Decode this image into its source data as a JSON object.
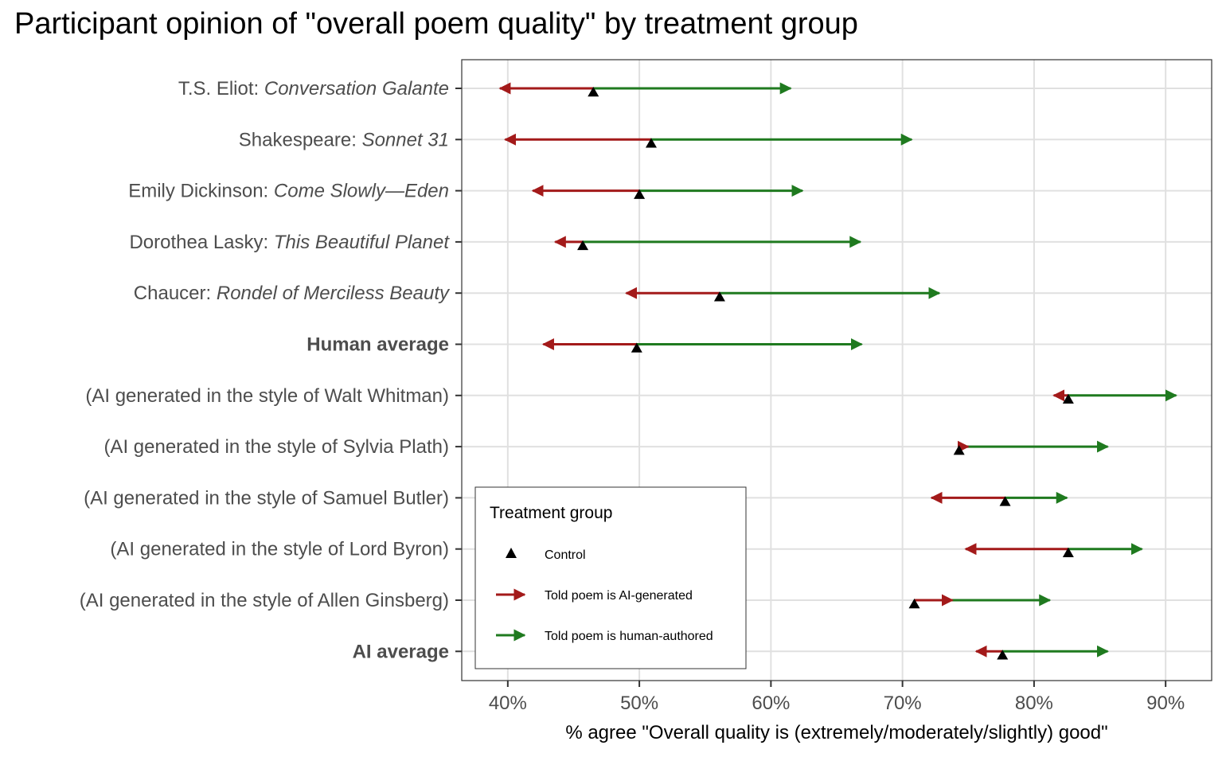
{
  "chart_data": {
    "type": "dumbbell-arrow",
    "title": "Participant opinion of \"overall poem quality\" by treatment group",
    "xlabel": "% agree \"Overall quality is (extremely/moderately/slightly) good\"",
    "xlim": [
      36.5,
      93.5
    ],
    "x_ticks": [
      40,
      50,
      60,
      70,
      80,
      90
    ],
    "x_tick_labels": [
      "40%",
      "50%",
      "60%",
      "70%",
      "80%",
      "90%"
    ],
    "grid": true,
    "legend_placement": "bottom-left",
    "legend": {
      "title": "Treatment group",
      "entries": [
        "Control",
        "Told poem is AI-generated",
        "Told poem is human-authored"
      ]
    },
    "colors": {
      "control": "#000000",
      "ai_generated": "#a31a1a",
      "human_authored": "#1f7a1f",
      "grid": "#e0e0e0",
      "panel_border": "#333333"
    },
    "categories": [
      {
        "prefix": "T.S. Eliot: ",
        "italic": "Conversation Galante",
        "bold": false,
        "control": 46.5,
        "ai_generated": 39.4,
        "human_authored": 61.5
      },
      {
        "prefix": "Shakespeare: ",
        "italic": "Sonnet 31",
        "bold": false,
        "control": 50.9,
        "ai_generated": 39.8,
        "human_authored": 70.7
      },
      {
        "prefix": "Emily Dickinson: ",
        "italic": "Come Slowly—Eden",
        "bold": false,
        "control": 50.0,
        "ai_generated": 41.9,
        "human_authored": 62.4
      },
      {
        "prefix": "Dorothea Lasky: ",
        "italic": "This Beautiful Planet",
        "bold": false,
        "control": 45.7,
        "ai_generated": 43.6,
        "human_authored": 66.8
      },
      {
        "prefix": "Chaucer: ",
        "italic": "Rondel of Merciless Beauty",
        "bold": false,
        "control": 56.1,
        "ai_generated": 49.0,
        "human_authored": 72.8
      },
      {
        "prefix": "Human average",
        "italic": "",
        "bold": true,
        "control": 49.8,
        "ai_generated": 42.7,
        "human_authored": 66.9
      },
      {
        "prefix": "(AI generated in the style of Walt Whitman)",
        "italic": "",
        "bold": false,
        "control": 82.6,
        "ai_generated": 81.5,
        "human_authored": 90.8
      },
      {
        "prefix": "(AI generated in the style of Sylvia Plath)",
        "italic": "",
        "bold": false,
        "control": 74.3,
        "ai_generated": 75.0,
        "human_authored": 85.6
      },
      {
        "prefix": "(AI generated in the style of Samuel Butler)",
        "italic": "",
        "bold": false,
        "control": 77.8,
        "ai_generated": 72.2,
        "human_authored": 82.5
      },
      {
        "prefix": "(AI generated in the style of Lord Byron)",
        "italic": "",
        "bold": false,
        "control": 82.6,
        "ai_generated": 74.8,
        "human_authored": 88.2
      },
      {
        "prefix": "(AI generated in the style of Allen Ginsberg)",
        "italic": "",
        "bold": false,
        "control": 70.9,
        "ai_generated": 73.8,
        "human_authored": 81.2
      },
      {
        "prefix": "AI average",
        "italic": "",
        "bold": true,
        "control": 77.6,
        "ai_generated": 75.6,
        "human_authored": 85.6
      }
    ]
  }
}
